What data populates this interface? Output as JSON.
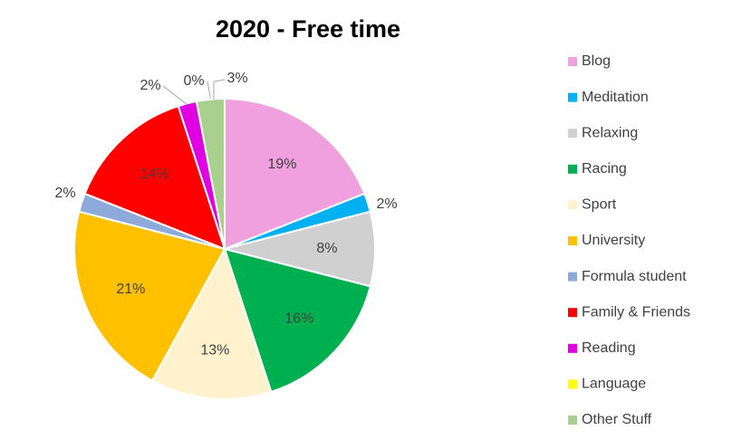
{
  "chart_data": {
    "type": "pie",
    "title": "2020 - Free time",
    "categories": [
      "Blog",
      "Meditation",
      "Relaxing",
      "Racing",
      "Sport",
      "University",
      "Formula student",
      "Family & Friends",
      "Reading",
      "Language",
      "Other Stuff"
    ],
    "values": [
      19,
      2,
      8,
      16,
      13,
      21,
      2,
      14,
      2,
      0,
      3
    ],
    "value_labels": [
      "19%",
      "2%",
      "8%",
      "16%",
      "13%",
      "21%",
      "2%",
      "14%",
      "2%",
      "0%",
      "3%"
    ],
    "colors": [
      "#f0a0dc",
      "#00b0f0",
      "#d0d0d0",
      "#00b050",
      "#fff2cc",
      "#ffc000",
      "#8eaadb",
      "#ff0000",
      "#e100e1",
      "#ffff00",
      "#a9d08e"
    ],
    "legend": "right"
  }
}
